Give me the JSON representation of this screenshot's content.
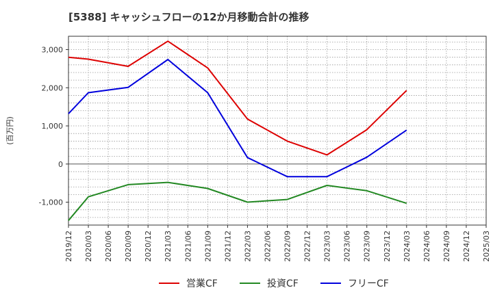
{
  "chart_data": {
    "type": "line",
    "title": "[5388]  キャッシュフローの12か月移動合計の推移",
    "ylabel": "(百万円)",
    "xlabel": "",
    "x": [
      "2019/12",
      "2020/03",
      "2020/06",
      "2020/09",
      "2020/12",
      "2021/03",
      "2021/06",
      "2021/09",
      "2021/12",
      "2022/03",
      "2022/06",
      "2022/09",
      "2022/12",
      "2023/03",
      "2023/06",
      "2023/09",
      "2023/12",
      "2024/03",
      "2024/06",
      "2024/09",
      "2024/12",
      "2025/03"
    ],
    "ylim": [
      -1600,
      3350
    ],
    "yticks": [
      -1000,
      0,
      1000,
      2000,
      3000
    ],
    "ytick_labels": [
      "-1,000",
      "0",
      "1,000",
      "2,000",
      "3,000"
    ],
    "grid": true,
    "legend_position": "bottom",
    "series": [
      {
        "name": "営業CF",
        "color": "#dd0000",
        "values": [
          2800,
          2750,
          null,
          2560,
          null,
          3220,
          null,
          2520,
          null,
          1180,
          null,
          600,
          null,
          240,
          null,
          900,
          null,
          1930,
          null,
          null,
          null,
          null
        ]
      },
      {
        "name": "投資CF",
        "color": "#228822",
        "values": [
          -1480,
          -860,
          null,
          -540,
          null,
          -480,
          null,
          -640,
          null,
          -1000,
          null,
          -930,
          null,
          -560,
          null,
          -700,
          null,
          -1030,
          null,
          null,
          null,
          null
        ]
      },
      {
        "name": "フリーCF",
        "color": "#0000dd",
        "values": [
          1320,
          1870,
          null,
          2010,
          null,
          2740,
          null,
          1870,
          null,
          170,
          null,
          -330,
          null,
          -330,
          null,
          180,
          null,
          890,
          null,
          null,
          null,
          null
        ]
      }
    ]
  }
}
